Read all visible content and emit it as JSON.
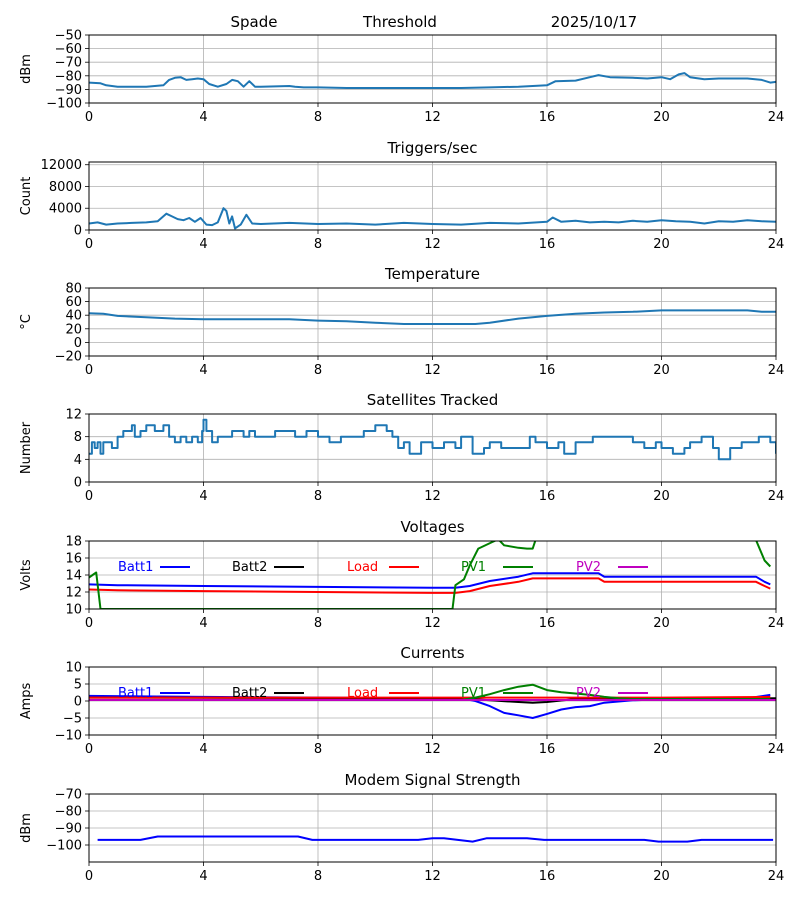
{
  "header": {
    "station": "Spade",
    "mode": "Threshold",
    "date": "2025/10/17"
  },
  "colors": {
    "default": "#1f77b4",
    "Batt1": "#0000ff",
    "Batt2": "#000000",
    "Load": "#ff0000",
    "PV1": "#008000",
    "PV2": "#bf00bf",
    "grid": "#b0b0b0"
  },
  "x_ticks": [
    "0",
    "4",
    "8",
    "12",
    "16",
    "20",
    "24"
  ],
  "chart_data": [
    {
      "type": "line",
      "title": "",
      "ylabel": "dBm",
      "xlim": [
        0,
        24
      ],
      "ylim": [
        -100,
        -50
      ],
      "yticks": [
        -50,
        -60,
        -70,
        -80,
        -90,
        -100
      ],
      "ytick_labels": [
        "−50",
        "−60",
        "−70",
        "−80",
        "−90",
        "−100"
      ],
      "series": [
        {
          "name": "Threshold",
          "color": "#1f77b4",
          "x": [
            0,
            0.4,
            0.6,
            1,
            2,
            2.6,
            2.8,
            3,
            3.2,
            3.4,
            3.6,
            3.8,
            4,
            4.2,
            4.5,
            4.8,
            5,
            5.2,
            5.4,
            5.6,
            5.8,
            6,
            7,
            7.2,
            7.5,
            8,
            9,
            10,
            11,
            12,
            13,
            14,
            15,
            15.5,
            16,
            16.3,
            17,
            17.5,
            17.8,
            18.2,
            19,
            19.5,
            20,
            20.3,
            20.6,
            20.8,
            21,
            21.5,
            22,
            23,
            23.5,
            23.8,
            24
          ],
          "y": [
            -85,
            -85.5,
            -87,
            -88,
            -88,
            -87,
            -83,
            -81.5,
            -81,
            -83,
            -82.5,
            -82,
            -82.5,
            -86,
            -88,
            -86,
            -83,
            -84,
            -88,
            -84,
            -88,
            -88,
            -87.5,
            -88,
            -88.5,
            -88.5,
            -89,
            -89,
            -89,
            -89,
            -89,
            -88.5,
            -88,
            -87.5,
            -87,
            -84,
            -83.5,
            -81,
            -79.5,
            -81,
            -81.5,
            -82,
            -81,
            -82.5,
            -79,
            -78,
            -81,
            -82.5,
            -82,
            -82,
            -83,
            -85,
            -84.5
          ]
        }
      ]
    },
    {
      "type": "line",
      "title": "Triggers/sec",
      "ylabel": "Count",
      "xlim": [
        0,
        24
      ],
      "ylim": [
        0,
        12500
      ],
      "yticks": [
        0,
        4000,
        8000,
        12000
      ],
      "ytick_labels": [
        "0",
        "4000",
        "8000",
        "12000"
      ],
      "series": [
        {
          "name": "Triggers",
          "color": "#1f77b4",
          "x": [
            0,
            0.3,
            0.6,
            1,
            1.5,
            2,
            2.4,
            2.7,
            2.9,
            3.1,
            3.3,
            3.5,
            3.7,
            3.9,
            4.1,
            4.3,
            4.5,
            4.7,
            4.8,
            4.9,
            5,
            5.1,
            5.3,
            5.5,
            5.7,
            6,
            7,
            8,
            9,
            10,
            11,
            12,
            13,
            14,
            15,
            16,
            16.2,
            16.5,
            17,
            17.5,
            18,
            18.5,
            19,
            19.5,
            20,
            20.5,
            21,
            21.5,
            22,
            22.5,
            23,
            23.5,
            24
          ],
          "y": [
            1200,
            1400,
            1000,
            1200,
            1300,
            1400,
            1600,
            3000,
            2500,
            2000,
            1800,
            2200,
            1500,
            2200,
            1000,
            900,
            1400,
            4000,
            3500,
            1200,
            2500,
            300,
            1000,
            2800,
            1200,
            1100,
            1300,
            1100,
            1200,
            1000,
            1300,
            1100,
            1000,
            1300,
            1200,
            1500,
            2300,
            1500,
            1700,
            1400,
            1500,
            1400,
            1700,
            1500,
            1800,
            1600,
            1500,
            1200,
            1600,
            1500,
            1800,
            1600,
            1500
          ]
        }
      ]
    },
    {
      "type": "line",
      "title": "Temperature",
      "ylabel": "°C",
      "xlim": [
        0,
        24
      ],
      "ylim": [
        -20,
        80
      ],
      "yticks": [
        80,
        60,
        40,
        20,
        0,
        -20
      ],
      "ytick_labels": [
        "80",
        "60",
        "40",
        "20",
        "0",
        "−20"
      ],
      "series": [
        {
          "name": "Temperature",
          "color": "#1f77b4",
          "x": [
            0,
            0.5,
            1,
            2,
            3,
            4,
            5,
            6,
            7,
            8,
            9,
            10,
            11,
            12,
            13,
            13.5,
            14,
            15,
            16,
            17,
            18,
            19,
            20,
            21,
            22,
            23,
            23.5,
            24
          ],
          "y": [
            43,
            42,
            39,
            37,
            35,
            34,
            34,
            34,
            34,
            32,
            31,
            29,
            27,
            27,
            27,
            27,
            29,
            35,
            39,
            42,
            44,
            45,
            47,
            47,
            47,
            47,
            45,
            45
          ]
        }
      ]
    },
    {
      "type": "line",
      "title": "Satellites Tracked",
      "ylabel": "Number",
      "xlim": [
        0,
        24
      ],
      "ylim": [
        0,
        12
      ],
      "yticks": [
        0,
        4,
        8,
        12
      ],
      "ytick_labels": [
        "0",
        "4",
        "8",
        "12"
      ],
      "series": [
        {
          "name": "Satellites",
          "color": "#1f77b4",
          "x": [
            0,
            0.1,
            0.2,
            0.3,
            0.4,
            0.5,
            0.6,
            0.8,
            1.0,
            1.2,
            1.4,
            1.5,
            1.6,
            1.8,
            2.0,
            2.3,
            2.6,
            2.8,
            3.0,
            3.2,
            3.4,
            3.6,
            3.8,
            3.95,
            4.0,
            4.1,
            4.3,
            4.5,
            5,
            5.4,
            5.6,
            5.8,
            6,
            6.5,
            7,
            7.2,
            7.4,
            7.6,
            8,
            8.4,
            8.8,
            9.2,
            9.6,
            10,
            10.4,
            10.6,
            10.8,
            11,
            11.2,
            11.6,
            12,
            12.4,
            12.8,
            13,
            13.4,
            13.8,
            14,
            14.4,
            14.8,
            15.2,
            15.4,
            15.6,
            16,
            16.4,
            16.6,
            17,
            17.6,
            18,
            18.4,
            18.8,
            19,
            19.4,
            19.8,
            20,
            20.4,
            20.8,
            21,
            21.4,
            21.8,
            22,
            22.4,
            22.8,
            23,
            23.4,
            23.8,
            24
          ],
          "y": [
            5,
            7,
            6,
            7,
            5,
            7,
            7,
            6,
            8,
            9,
            9,
            10,
            8,
            9,
            10,
            9,
            10,
            8,
            7,
            8,
            7,
            8,
            7,
            9,
            11,
            9,
            7,
            8,
            9,
            8,
            9,
            8,
            8,
            9,
            9,
            8,
            8,
            9,
            8,
            7,
            8,
            8,
            9,
            10,
            9,
            8,
            6,
            7,
            5,
            7,
            6,
            7,
            6,
            8,
            5,
            6,
            7,
            6,
            6,
            6,
            8,
            7,
            6,
            7,
            5,
            7,
            8,
            8,
            8,
            8,
            7,
            6,
            7,
            6,
            5,
            6,
            7,
            8,
            6,
            4,
            6,
            7,
            7,
            8,
            7,
            5
          ]
        }
      ]
    },
    {
      "type": "line",
      "title": "Voltages",
      "ylabel": "Volts",
      "xlim": [
        0,
        24
      ],
      "ylim": [
        10,
        18
      ],
      "yticks": [
        10,
        12,
        14,
        16,
        18
      ],
      "ytick_labels": [
        "10",
        "12",
        "14",
        "16",
        "18"
      ],
      "legend": [
        "Batt1",
        "Batt2",
        "Load",
        "PV1",
        "PV2"
      ],
      "legend_position": "top",
      "series": [
        {
          "name": "Batt1",
          "color": "#0000ff",
          "x": [
            0,
            1,
            4,
            8,
            12,
            12.8,
            13.3,
            14,
            15,
            15.5,
            16,
            17.5,
            17.8,
            18,
            20,
            23.3,
            23.6,
            23.8
          ],
          "y": [
            12.9,
            12.8,
            12.7,
            12.6,
            12.5,
            12.5,
            12.7,
            13.3,
            13.8,
            14.2,
            14.2,
            14.2,
            14.2,
            13.8,
            13.8,
            13.8,
            13.2,
            12.9
          ]
        },
        {
          "name": "Batt2",
          "color": "#000000",
          "x": [],
          "y": []
        },
        {
          "name": "Load",
          "color": "#ff0000",
          "x": [
            0,
            1,
            4,
            8,
            12,
            12.8,
            13.3,
            14,
            15,
            15.5,
            16,
            17.5,
            17.8,
            18,
            20,
            23.3,
            23.6,
            23.8
          ],
          "y": [
            12.3,
            12.2,
            12.1,
            12.0,
            11.9,
            11.9,
            12.1,
            12.7,
            13.2,
            13.6,
            13.6,
            13.6,
            13.6,
            13.2,
            13.2,
            13.2,
            12.7,
            12.4
          ]
        },
        {
          "name": "PV1",
          "color": "#008000",
          "x": [
            0,
            0.25,
            0.4,
            12.7,
            12.8,
            13.1,
            13.3,
            13.6,
            14.1,
            14.3,
            14.5,
            15,
            15.3,
            15.5,
            15.6,
            23.3,
            23.6,
            23.8
          ],
          "y": [
            13.7,
            14.3,
            10,
            10,
            12.8,
            13.5,
            15.1,
            17.1,
            17.9,
            18.2,
            17.5,
            17.2,
            17.1,
            17.1,
            18.1,
            18.1,
            15.7,
            15.0
          ]
        },
        {
          "name": "PV2",
          "color": "#bf00bf",
          "x": [],
          "y": []
        }
      ]
    },
    {
      "type": "line",
      "title": "Currents",
      "ylabel": "Amps",
      "xlim": [
        0,
        24
      ],
      "ylim": [
        -10,
        10
      ],
      "yticks": [
        10,
        5,
        0,
        -5,
        -10
      ],
      "ytick_labels": [
        "10",
        "5",
        "0",
        "−5",
        "−10"
      ],
      "legend": [
        "Batt1",
        "Batt2",
        "Load",
        "PV1",
        "PV2"
      ],
      "legend_position": "top",
      "series": [
        {
          "name": "Batt1",
          "color": "#0000ff",
          "x": [
            0,
            4,
            8,
            12,
            13,
            13.5,
            14,
            14.5,
            15,
            15.5,
            16,
            16.5,
            17,
            17.5,
            18,
            19,
            20,
            23,
            23.8
          ],
          "y": [
            1.5,
            1.2,
            1,
            0.8,
            0.8,
            0,
            -1.5,
            -3.5,
            -4.2,
            -5,
            -3.8,
            -2.5,
            -1.8,
            -1.5,
            -0.5,
            0.2,
            0.5,
            0.8,
            1.8
          ]
        },
        {
          "name": "Batt2",
          "color": "#000000",
          "x": [
            0,
            13,
            14,
            15,
            15.5,
            16,
            17,
            24
          ],
          "y": [
            1.0,
            0.8,
            0.2,
            -0.3,
            -0.5,
            -0.3,
            0.6,
            0.8
          ]
        },
        {
          "name": "Load",
          "color": "#ff0000",
          "x": [
            0,
            4,
            8,
            12,
            16,
            20,
            23.8
          ],
          "y": [
            1.0,
            1.0,
            1.0,
            1.0,
            1.0,
            1.0,
            1.2
          ]
        },
        {
          "name": "PV1",
          "color": "#008000",
          "x": [
            0,
            13,
            13.5,
            14,
            14.5,
            15,
            15.5,
            16,
            16.5,
            17,
            17.5,
            18,
            18.5,
            19,
            23.8
          ],
          "y": [
            0.3,
            0.3,
            1,
            2,
            3.2,
            4.2,
            4.8,
            3.2,
            2.6,
            2.2,
            1.8,
            1.2,
            0.8,
            0.6,
            0.6
          ]
        },
        {
          "name": "PV2",
          "color": "#bf00bf",
          "x": [
            0,
            24
          ],
          "y": [
            0.3,
            0.3
          ]
        }
      ]
    },
    {
      "type": "line",
      "title": "Modem Signal Strength",
      "ylabel": "dBm",
      "xlim": [
        0,
        24
      ],
      "ylim": [
        -110,
        -70
      ],
      "yticks": [
        -70,
        -80,
        -90,
        -100
      ],
      "ytick_labels": [
        "−70",
        "−80",
        "−90",
        "−100"
      ],
      "series": [
        {
          "name": "Modem",
          "color": "#0000ff",
          "x": [
            0.3,
            1.8,
            2.4,
            7.3,
            7.8,
            11.5,
            12,
            12.4,
            13.4,
            13.9,
            15.3,
            15.9,
            19.4,
            19.9,
            20.9,
            21.4,
            23.9
          ],
          "y": [
            -97,
            -97,
            -95,
            -95,
            -97,
            -97,
            -96,
            -96,
            -98,
            -96,
            -96,
            -97,
            -97,
            -98,
            -98,
            -97,
            -97
          ]
        }
      ]
    }
  ]
}
